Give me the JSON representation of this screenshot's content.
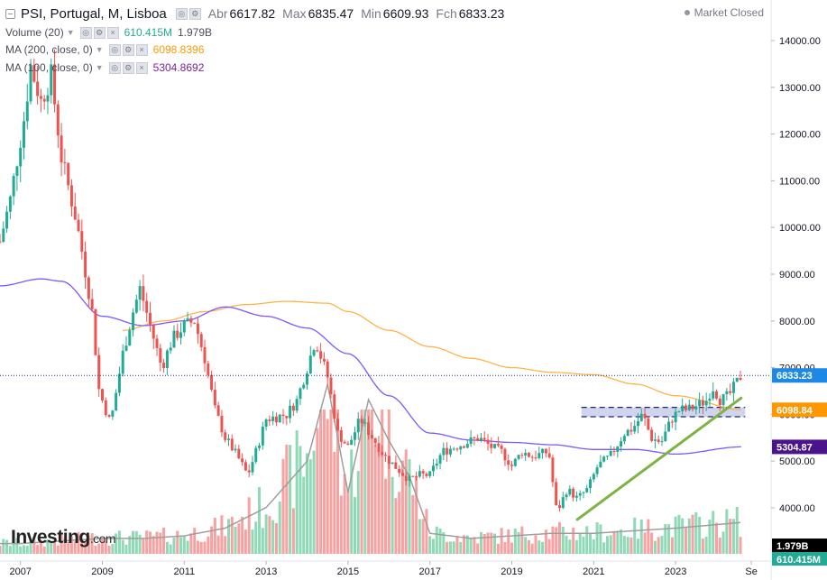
{
  "header": {
    "symbol": "PSI, Portugal, M, Lisboa",
    "open_label": "Abr",
    "open_value": "6617.82",
    "high_label": "Max",
    "high_value": "6835.47",
    "low_label": "Min",
    "low_value": "6609.93",
    "close_label": "Fch",
    "close_value": "6833.23",
    "market_status": "Market Closed"
  },
  "indicators": [
    {
      "label": "Volume (20)",
      "values": [
        "610.415M",
        "1.979B"
      ],
      "colors": [
        "#22ab94",
        "#131722"
      ]
    },
    {
      "label": "MA (200, close, 0)",
      "values": [
        "6098.8396"
      ],
      "colors": [
        "#ff9800"
      ]
    },
    {
      "label": "MA (100, close, 0)",
      "values": [
        "5304.8692"
      ],
      "colors": [
        "#7b1fa2"
      ]
    }
  ],
  "logo": {
    "text": "Investing",
    "suffix": ".com"
  },
  "chart_data": {
    "type": "candlestick",
    "interval": "monthly",
    "price_axis": {
      "ticks": [
        "14000.00",
        "13000.00",
        "12000.00",
        "11000.00",
        "10000.00",
        "9000.00",
        "8000.00",
        "7000.00",
        "6000.00",
        "5000.00",
        "4000.00"
      ],
      "min": 3000,
      "max": 14700,
      "side": "right"
    },
    "x_axis": {
      "ticks": [
        "2007",
        "2009",
        "2011",
        "2013",
        "2015",
        "2017",
        "2019",
        "2021",
        "2023",
        "Se"
      ]
    },
    "price_labels": [
      {
        "text": "6833.23",
        "value": 6833.23,
        "bg": "#1e88e5",
        "color": "#ffffff"
      },
      {
        "text": "6098.84",
        "value": 6098.84,
        "bg": "#ff9800",
        "color": "#ffffff"
      },
      {
        "text": "5304.87",
        "value": 5304.87,
        "bg": "#4a148c",
        "color": "#ffffff"
      }
    ],
    "volume_labels": [
      {
        "text": "1.979B",
        "bg": "#000000",
        "color": "#ffffff"
      },
      {
        "text": "610.415M",
        "bg": "#22ab94",
        "color": "#ffffff"
      }
    ],
    "last_price_line": 6833.23,
    "series": [
      {
        "name": "PSI",
        "type": "candlestick",
        "up_color": "#22ab94",
        "down_color": "#ef5350",
        "path": [
          [
            2006.5,
            9700
          ],
          [
            2006.75,
            10600
          ],
          [
            2007.1,
            12400
          ],
          [
            2007.25,
            13450
          ],
          [
            2007.5,
            12700
          ],
          [
            2007.75,
            13250
          ],
          [
            2008.0,
            11500
          ],
          [
            2008.35,
            10200
          ],
          [
            2008.5,
            9500
          ],
          [
            2008.75,
            8200
          ],
          [
            2008.92,
            6500
          ],
          [
            2009.2,
            5800
          ],
          [
            2009.5,
            7300
          ],
          [
            2009.75,
            8200
          ],
          [
            2009.92,
            8700
          ],
          [
            2010.2,
            7800
          ],
          [
            2010.45,
            7000
          ],
          [
            2010.7,
            7600
          ],
          [
            2011.0,
            7900
          ],
          [
            2011.25,
            8000
          ],
          [
            2011.5,
            7200
          ],
          [
            2011.75,
            6100
          ],
          [
            2012.0,
            5500
          ],
          [
            2012.3,
            5100
          ],
          [
            2012.55,
            4700
          ],
          [
            2012.75,
            5200
          ],
          [
            2013.0,
            5900
          ],
          [
            2013.5,
            6000
          ],
          [
            2013.75,
            6300
          ],
          [
            2014.0,
            7000
          ],
          [
            2014.2,
            7600
          ],
          [
            2014.5,
            6800
          ],
          [
            2014.75,
            5600
          ],
          [
            2015.0,
            5300
          ],
          [
            2015.3,
            5900
          ],
          [
            2015.6,
            5500
          ],
          [
            2015.9,
            5100
          ],
          [
            2016.25,
            4800
          ],
          [
            2016.5,
            4600
          ],
          [
            2016.75,
            4700
          ],
          [
            2017.0,
            4700
          ],
          [
            2017.3,
            5200
          ],
          [
            2017.6,
            5300
          ],
          [
            2017.9,
            5400
          ],
          [
            2018.2,
            5500
          ],
          [
            2018.5,
            5300
          ],
          [
            2018.75,
            5200
          ],
          [
            2019.0,
            4900
          ],
          [
            2019.25,
            5200
          ],
          [
            2019.5,
            5100
          ],
          [
            2019.9,
            5200
          ],
          [
            2020.1,
            3900
          ],
          [
            2020.35,
            4400
          ],
          [
            2020.6,
            4200
          ],
          [
            2020.85,
            4400
          ],
          [
            2021.1,
            4900
          ],
          [
            2021.4,
            5100
          ],
          [
            2021.75,
            5600
          ],
          [
            2021.95,
            5700
          ],
          [
            2022.2,
            6000
          ],
          [
            2022.4,
            5500
          ],
          [
            2022.65,
            5400
          ],
          [
            2022.9,
            5900
          ],
          [
            2023.1,
            6100
          ],
          [
            2023.3,
            6100
          ],
          [
            2023.55,
            6200
          ],
          [
            2023.75,
            6300
          ],
          [
            2023.9,
            6600
          ],
          [
            2024.1,
            6300
          ],
          [
            2024.3,
            6400
          ],
          [
            2024.6,
            6833
          ]
        ]
      },
      {
        "name": "MA (200, close, 0)",
        "type": "line",
        "color": "#ffb347",
        "values": [
          [
            2009.5,
            7800
          ],
          [
            2010.5,
            8000
          ],
          [
            2011.5,
            8200
          ],
          [
            2012.5,
            8350
          ],
          [
            2013.5,
            8420
          ],
          [
            2014.5,
            8380
          ],
          [
            2015.0,
            8200
          ],
          [
            2016.0,
            7800
          ],
          [
            2017.0,
            7450
          ],
          [
            2018.0,
            7200
          ],
          [
            2019.0,
            7000
          ],
          [
            2020.0,
            6900
          ],
          [
            2021.0,
            6850
          ],
          [
            2022.0,
            6650
          ],
          [
            2023.0,
            6400
          ],
          [
            2024.6,
            6098.84
          ]
        ]
      },
      {
        "name": "MA (100, close, 0)",
        "type": "line",
        "color": "#7e57ff",
        "values": [
          [
            2006.5,
            8750
          ],
          [
            2007.5,
            8900
          ],
          [
            2008.0,
            8850
          ],
          [
            2009.0,
            8100
          ],
          [
            2010.0,
            7900
          ],
          [
            2011.0,
            8000
          ],
          [
            2012.0,
            8300
          ],
          [
            2013.0,
            8100
          ],
          [
            2014.0,
            7850
          ],
          [
            2015.0,
            7300
          ],
          [
            2016.0,
            6400
          ],
          [
            2017.0,
            5600
          ],
          [
            2018.0,
            5450
          ],
          [
            2019.0,
            5400
          ],
          [
            2020.0,
            5350
          ],
          [
            2021.0,
            5250
          ],
          [
            2022.0,
            5250
          ],
          [
            2023.0,
            5150
          ],
          [
            2024.6,
            5304.87
          ]
        ]
      }
    ],
    "annotations": [
      {
        "type": "trendline",
        "color": "#7cb342",
        "points": [
          [
            2020.6,
            3750
          ],
          [
            2024.6,
            6350
          ]
        ]
      },
      {
        "type": "zone",
        "color": "#7986cb",
        "from": 5950,
        "to": 6150,
        "x_start": 2020.7,
        "x_end": 2024.7
      }
    ],
    "volume": {
      "up_color": "#8fd9b6",
      "down_color": "#f7a1a1",
      "ma_color": "#9e9e9e",
      "bars_approx_billions": [
        [
          2007,
          0.2
        ],
        [
          2008,
          0.25
        ],
        [
          2009,
          0.3
        ],
        [
          2010,
          0.3
        ],
        [
          2011,
          0.35
        ],
        [
          2012,
          0.5
        ],
        [
          2013,
          0.9
        ],
        [
          2014,
          1.8
        ],
        [
          2014.5,
          3.3
        ],
        [
          2015,
          1.2
        ],
        [
          2015.5,
          3.0
        ],
        [
          2016,
          2.2
        ],
        [
          2016.5,
          1.5
        ],
        [
          2017,
          0.4
        ],
        [
          2018,
          0.3
        ],
        [
          2019,
          0.35
        ],
        [
          2020,
          0.4
        ],
        [
          2021,
          0.4
        ],
        [
          2022,
          0.45
        ],
        [
          2023,
          0.5
        ],
        [
          2024.6,
          0.61
        ]
      ]
    }
  }
}
